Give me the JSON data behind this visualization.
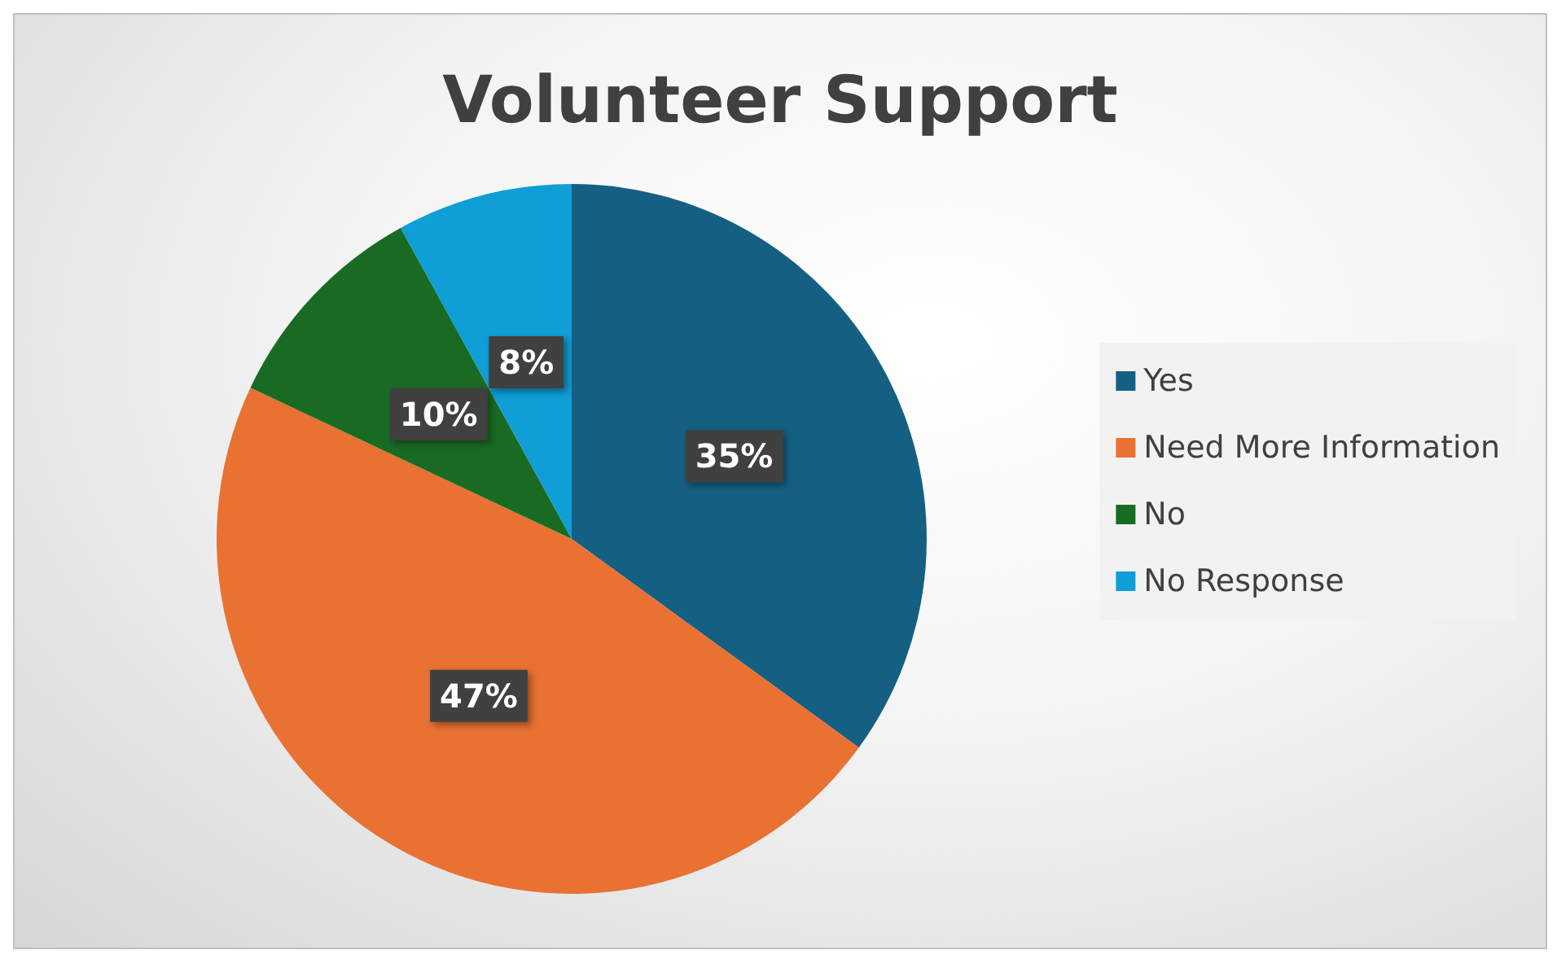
{
  "chart_data": {
    "type": "pie",
    "title": "Volunteer Support",
    "categories": [
      "Yes",
      "Need More Information",
      "No",
      "No Response"
    ],
    "values": [
      35,
      47,
      10,
      8
    ],
    "colors": [
      "#156082",
      "#e97132",
      "#196b24",
      "#0f9ed5"
    ],
    "value_labels": [
      "35%",
      "47%",
      "10%",
      "8%"
    ],
    "legend": "right"
  }
}
